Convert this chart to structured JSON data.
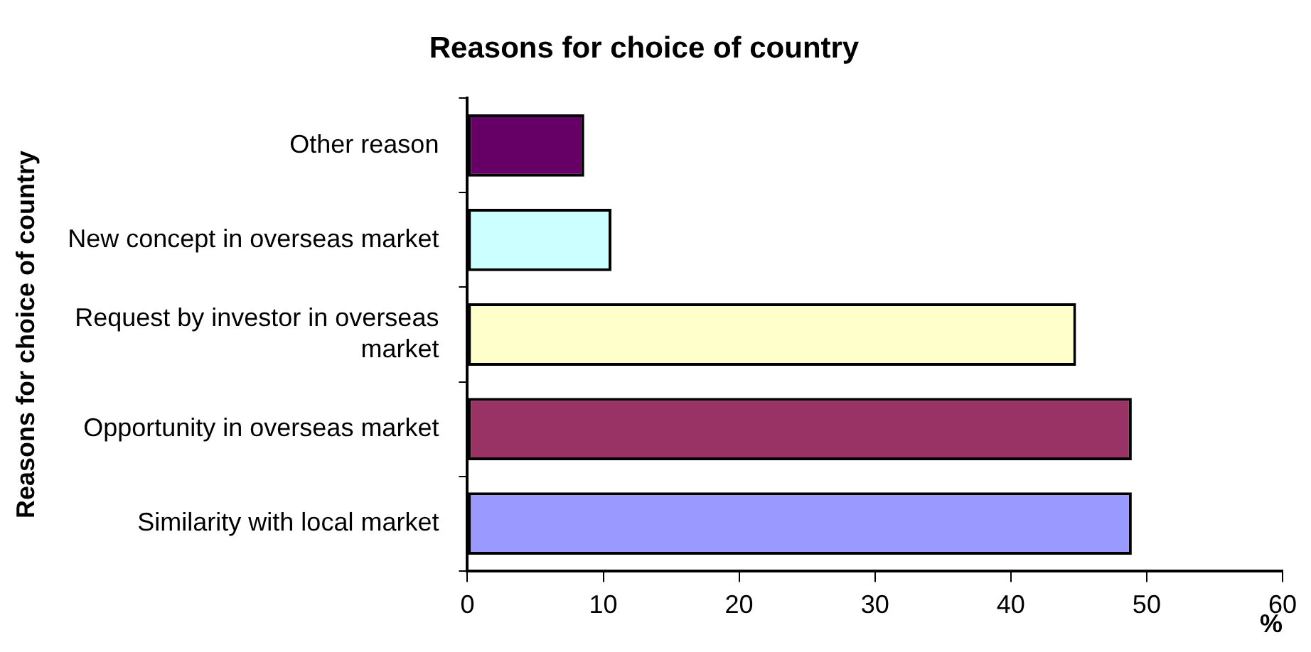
{
  "chart_data": {
    "type": "bar",
    "orientation": "horizontal",
    "title": "Reasons for choice of country",
    "xlabel": "%",
    "ylabel": "Reasons for choice of country",
    "categories": [
      "Other reason",
      "New concept in overseas market",
      "Request by investor in overseas market",
      "Opportunity in overseas market",
      "Similarity with local market"
    ],
    "values": [
      8.6,
      10.6,
      44.8,
      48.9,
      48.9
    ],
    "colors": [
      "#660066",
      "#ccffff",
      "#ffffcc",
      "#993366",
      "#9999ff"
    ],
    "xlim": [
      0,
      60
    ],
    "xticks": [
      0,
      10,
      20,
      30,
      40,
      50,
      60
    ],
    "grid": false,
    "legend": false
  }
}
